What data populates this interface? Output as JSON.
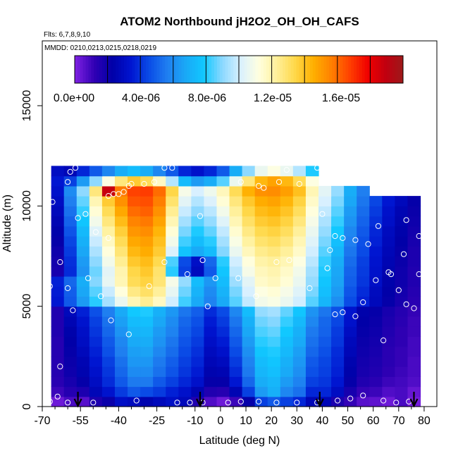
{
  "chart_data": {
    "type": "heatmap",
    "title": "ATOM2 Northbound jH2O2_OH_OH_CAFS",
    "flights_note": "Flts: 6,7,8,9,10",
    "dates_note": "MMDD: 0210,0213,0215,0218,0219",
    "xlabel": "Latitude (deg N)",
    "ylabel": "Altitude (m)",
    "xlim": [
      -70,
      85
    ],
    "ylim": [
      0,
      17500
    ],
    "x_ticks": [
      -70,
      -55,
      -40,
      -25,
      -10,
      0,
      10,
      20,
      30,
      40,
      50,
      60,
      70,
      80
    ],
    "x_tick_labels": [
      "-70",
      "-55",
      "-40",
      "-25",
      "-10",
      "0",
      "10",
      "20",
      "30",
      "40",
      "50",
      "60",
      "70",
      "80"
    ],
    "x_minor_ticks": [
      -65,
      -60,
      -50,
      -45,
      -35,
      -30,
      -20,
      -15,
      -5,
      5,
      15,
      25,
      35,
      45,
      55,
      65,
      75
    ],
    "y_ticks": [
      0,
      5000,
      10000,
      15000
    ],
    "y_tick_labels": [
      "0",
      "5000",
      "10000",
      "15000"
    ],
    "colorbar": {
      "min": 0,
      "max": 1.9e-05,
      "tick_values": [
        0,
        4e-06,
        8e-06,
        1.2e-05,
        1.6e-05
      ],
      "tick_labels": [
        "0.0e+00",
        "4.0e-06",
        "8.0e-06",
        "1.2e-05",
        "1.6e-05"
      ],
      "colors": [
        "#7b1fe0",
        "#3000b4",
        "#0000a8",
        "#0014d0",
        "#0a4ce6",
        "#1f7ef0",
        "#1aa8f6",
        "#10c8ff",
        "#8ad8ff",
        "#d8f0ff",
        "#ffffe0",
        "#fff09a",
        "#ffd84a",
        "#ffb000",
        "#ff8000",
        "#ff4000",
        "#f00000",
        "#c00010",
        "#9a1b1b"
      ]
    },
    "altitude_bins": [
      {
        "alt": 250,
        "values": [
          0.2,
          0.7,
          0.5,
          1.5,
          1.9,
          2.9,
          2.7,
          2.3,
          2.6,
          2.9,
          2.6,
          1.4,
          0.6,
          0.2,
          0.9,
          2.0,
          4.0,
          4.5,
          4.0,
          3.5,
          2.5,
          2.5,
          1.5,
          1.0,
          0.5,
          0.4,
          0.2,
          0.7,
          0.1
        ]
      },
      {
        "alt": 750,
        "values": [
          0.9,
          1.3,
          1.5,
          2.5,
          3.1,
          3.9,
          4.5,
          4.2,
          3.9,
          3.4,
          3.0,
          2.4,
          1.4,
          1.3,
          2.4,
          4.0,
          6.0,
          6.6,
          5.5,
          5.0,
          3.5,
          3.5,
          2.8,
          1.6,
          1.0,
          0.9,
          0.6,
          0.7,
          0.3
        ]
      },
      {
        "alt": 1250,
        "values": [
          1.2,
          1.6,
          2.0,
          2.8,
          3.6,
          4.5,
          5.2,
          5.2,
          4.5,
          4.0,
          3.5,
          3.0,
          2.0,
          2.0,
          3.2,
          4.8,
          6.5,
          6.8,
          6.0,
          5.4,
          4.0,
          3.8,
          3.2,
          2.0,
          1.4,
          1.2,
          0.9,
          0.8,
          0.6
        ]
      },
      {
        "alt": 1750,
        "values": [
          1.3,
          1.8,
          2.3,
          3.0,
          3.8,
          4.8,
          5.6,
          5.6,
          5.0,
          4.4,
          3.8,
          3.3,
          2.3,
          2.4,
          3.6,
          5.2,
          6.8,
          7.1,
          6.4,
          5.7,
          4.3,
          4.0,
          3.4,
          2.2,
          1.6,
          1.4,
          1.1,
          0.9,
          0.7
        ]
      },
      {
        "alt": 2250,
        "values": [
          1.3,
          1.9,
          2.4,
          3.2,
          4.0,
          5.0,
          5.9,
          5.9,
          5.2,
          4.6,
          4.0,
          3.5,
          2.5,
          2.7,
          3.9,
          5.4,
          7.0,
          7.3,
          6.6,
          5.9,
          4.5,
          4.1,
          3.5,
          2.3,
          1.7,
          1.5,
          1.2,
          1.0,
          0.7
        ]
      },
      {
        "alt": 2750,
        "values": [
          1.3,
          2.0,
          2.6,
          3.4,
          4.3,
          5.3,
          6.1,
          6.2,
          5.5,
          4.9,
          4.2,
          3.7,
          2.7,
          3.0,
          4.2,
          5.7,
          7.3,
          7.5,
          6.9,
          6.1,
          4.8,
          4.3,
          3.6,
          2.5,
          1.8,
          1.6,
          1.2,
          1.0,
          0.8
        ]
      },
      {
        "alt": 3250,
        "values": [
          1.3,
          2.1,
          2.8,
          3.6,
          4.5,
          5.5,
          6.4,
          6.5,
          5.8,
          5.1,
          4.4,
          3.9,
          2.9,
          3.3,
          4.5,
          6.0,
          7.6,
          7.8,
          7.1,
          6.4,
          5.0,
          4.5,
          3.8,
          2.6,
          1.9,
          1.7,
          1.3,
          1.1,
          0.8
        ]
      },
      {
        "alt": 3750,
        "values": [
          1.4,
          2.2,
          2.9,
          3.8,
          4.8,
          5.8,
          6.7,
          6.8,
          6.0,
          5.4,
          4.6,
          4.1,
          3.1,
          3.6,
          4.8,
          6.3,
          7.9,
          8.1,
          7.4,
          6.6,
          5.2,
          4.7,
          3.9,
          2.8,
          2.0,
          1.8,
          1.4,
          1.1,
          0.9
        ]
      },
      {
        "alt": 4250,
        "values": [
          1.4,
          2.4,
          3.1,
          4.0,
          5.0,
          6.1,
          7.0,
          7.1,
          6.3,
          5.6,
          4.8,
          4.3,
          3.3,
          3.9,
          5.1,
          6.6,
          8.2,
          8.4,
          7.7,
          6.9,
          5.5,
          4.8,
          4.1,
          3.0,
          2.1,
          1.9,
          1.5,
          1.2,
          0.9
        ]
      },
      {
        "alt": 4750,
        "values": [
          1.4,
          2.6,
          3.4,
          4.3,
          5.3,
          6.4,
          7.4,
          7.5,
          6.6,
          5.9,
          5.1,
          4.6,
          3.6,
          4.2,
          5.5,
          7.0,
          8.6,
          8.8,
          8.1,
          7.3,
          5.8,
          5.1,
          4.3,
          3.1,
          2.2,
          2.0,
          1.6,
          1.3,
          1.0
        ]
      },
      {
        "alt": 5250,
        "values": [
          3.2,
          4.5,
          6.0,
          7.6,
          8.8,
          10.0,
          11.2,
          11.7,
          11.0,
          9.4,
          7.8,
          6.4,
          5.4,
          6.4,
          8.0,
          9.2,
          10.2,
          10.4,
          10.0,
          9.4,
          8.0,
          6.8,
          5.7,
          4.2,
          3.4,
          2.6,
          2.0,
          1.6,
          1.2
        ]
      },
      {
        "alt": 5750,
        "values": [
          3.3,
          4.6,
          6.3,
          8.0,
          9.3,
          10.6,
          11.9,
          12.3,
          11.6,
          9.9,
          8.2,
          6.7,
          5.6,
          6.7,
          8.3,
          9.5,
          10.5,
          10.7,
          10.3,
          9.7,
          8.3,
          7.1,
          6.0,
          4.4,
          3.6,
          2.7,
          2.1,
          1.7,
          1.3
        ]
      },
      {
        "alt": 6250,
        "values": [
          3.4,
          4.8,
          6.5,
          8.4,
          9.9,
          11.2,
          12.5,
          12.8,
          12.1,
          10.3,
          8.6,
          7.0,
          5.9,
          7.0,
          8.7,
          9.8,
          10.9,
          11.1,
          10.7,
          10.0,
          8.6,
          7.3,
          6.2,
          4.6,
          3.8,
          2.9,
          2.2,
          1.8,
          1.4
        ]
      },
      {
        "alt": 6750,
        "values": [
          1.6,
          3.6,
          5.8,
          8.2,
          9.8,
          11.3,
          12.7,
          13.1,
          12.2,
          7.6,
          4.0,
          2.7,
          4.5,
          7.3,
          9.1,
          10.3,
          11.1,
          11.3,
          10.9,
          10.2,
          8.8,
          7.5,
          6.3,
          4.7,
          3.9,
          3.0,
          2.3,
          1.8,
          1.4
        ]
      },
      {
        "alt": 7250,
        "values": [
          1.7,
          3.7,
          6.0,
          8.5,
          10.2,
          11.7,
          13.1,
          13.4,
          12.6,
          7.9,
          4.2,
          2.9,
          4.8,
          7.6,
          9.4,
          10.6,
          11.4,
          11.6,
          11.2,
          10.5,
          9.1,
          7.7,
          6.5,
          4.9,
          4.0,
          3.1,
          2.4,
          1.9,
          1.5
        ]
      },
      {
        "alt": 7750,
        "values": [
          1.8,
          3.9,
          6.3,
          8.9,
          10.6,
          12.1,
          13.5,
          13.8,
          13.0,
          9.6,
          7.2,
          6.4,
          7.0,
          8.4,
          10.0,
          11.1,
          11.8,
          12.0,
          11.6,
          10.9,
          9.4,
          8.0,
          6.8,
          5.1,
          4.2,
          3.2,
          2.5,
          2.0,
          1.5
        ]
      },
      {
        "alt": 8250,
        "values": [
          2.0,
          4.1,
          6.6,
          9.3,
          11.0,
          12.5,
          13.9,
          14.1,
          13.3,
          10.2,
          7.8,
          7.0,
          7.6,
          8.8,
          10.4,
          11.5,
          12.2,
          12.4,
          12.0,
          11.2,
          9.7,
          8.3,
          7.1,
          5.3,
          4.3,
          3.4,
          2.6,
          2.1,
          1.6
        ]
      },
      {
        "alt": 8750,
        "values": [
          2.2,
          4.4,
          6.9,
          9.7,
          11.5,
          12.9,
          14.3,
          14.5,
          13.6,
          10.7,
          8.3,
          7.5,
          8.1,
          9.2,
          10.8,
          11.9,
          12.6,
          12.8,
          12.4,
          11.6,
          10.0,
          8.6,
          7.4,
          5.5,
          4.5,
          3.5,
          2.7,
          2.2,
          1.7
        ]
      },
      {
        "alt": 9250,
        "values": [
          2.4,
          4.7,
          7.3,
          10.2,
          12.0,
          13.4,
          14.7,
          14.9,
          14.0,
          11.2,
          8.8,
          8.0,
          8.6,
          9.7,
          11.2,
          12.3,
          13.0,
          13.2,
          12.8,
          12.0,
          10.3,
          8.9,
          7.7,
          5.8,
          4.7,
          3.7,
          2.9,
          2.3,
          1.8
        ]
      },
      {
        "alt": 9750,
        "values": [
          2.6,
          5.0,
          7.7,
          10.7,
          12.5,
          13.9,
          15.1,
          15.3,
          14.4,
          11.7,
          9.3,
          8.5,
          9.1,
          10.2,
          11.6,
          12.7,
          13.4,
          13.6,
          13.2,
          12.4,
          10.6,
          9.2,
          8.0,
          6.0,
          4.9,
          3.9,
          3.0,
          2.4,
          1.9
        ]
      },
      {
        "alt": 10250,
        "values": [
          2.8,
          5.3,
          8.1,
          11.2,
          13.0,
          14.4,
          15.5,
          15.6,
          14.8,
          12.2,
          9.8,
          9.0,
          9.6,
          10.7,
          12.0,
          13.1,
          13.8,
          14.0,
          13.6,
          12.8,
          10.9,
          9.5,
          8.3,
          6.3,
          5.1,
          4.1,
          3.2,
          2.6,
          2.0
        ]
      },
      {
        "alt": 10750,
        "values": [
          3.0,
          5.6,
          8.5,
          12.0,
          17.8,
          14.9,
          15.8,
          15.9,
          15.1,
          12.7,
          10.3,
          9.5,
          10.1,
          11.1,
          12.5,
          13.7,
          14.4,
          14.5,
          14.1,
          13.3,
          11.2,
          9.8,
          8.6,
          6.5,
          5.3
        ]
      },
      {
        "alt": 11250,
        "values": [
          3.2,
          4.0,
          6.0,
          8.5,
          10.5,
          12.0,
          13.0,
          12.5,
          11.0,
          9.0,
          7.0,
          6.0,
          6.5,
          8.0,
          10.0,
          12.0,
          13.5,
          14.0,
          13.5,
          12.5,
          10.5
        ]
      },
      {
        "alt": 11750,
        "values": [
          2.8,
          2.5,
          3.5,
          4.5,
          5.5,
          6.5,
          7.0,
          6.5,
          5.5,
          4.5,
          3.5,
          3.0,
          3.5,
          4.5,
          6.5,
          8.5,
          10.0,
          10.5,
          10.0,
          9.0,
          7.5
        ]
      }
    ],
    "lat_bin_start": -70,
    "lat_bin_width": 5,
    "observation_points": [
      [
        -69,
        200
      ],
      [
        -67,
        250
      ],
      [
        -64,
        500
      ],
      [
        -60,
        200
      ],
      [
        -50,
        200
      ],
      [
        -33,
        300
      ],
      [
        -17,
        200
      ],
      [
        -12,
        200
      ],
      [
        -7,
        200
      ],
      [
        3,
        200
      ],
      [
        8,
        250
      ],
      [
        15,
        250
      ],
      [
        22,
        200
      ],
      [
        30,
        200
      ],
      [
        38,
        200
      ],
      [
        46,
        300
      ],
      [
        51,
        400
      ],
      [
        56,
        550
      ],
      [
        64,
        300
      ],
      [
        69,
        200
      ],
      [
        74,
        250
      ],
      [
        -68,
        1200
      ],
      [
        -63,
        2000
      ],
      [
        -58,
        4800
      ],
      [
        -52,
        6400
      ],
      [
        -47,
        5500
      ],
      [
        -43,
        4300
      ],
      [
        -36,
        3600
      ],
      [
        -28,
        6000
      ],
      [
        -22,
        7200
      ],
      [
        -13,
        6600
      ],
      [
        -7,
        7300
      ],
      [
        -5,
        5000
      ],
      [
        -2,
        6400
      ],
      [
        7,
        6400
      ],
      [
        14,
        5500
      ],
      [
        22,
        7200
      ],
      [
        27,
        7300
      ],
      [
        35,
        5900
      ],
      [
        42,
        6900
      ],
      [
        45,
        4600
      ],
      [
        48,
        4700
      ],
      [
        53,
        4500
      ],
      [
        56,
        5200
      ],
      [
        61,
        6300
      ],
      [
        64,
        3300
      ],
      [
        66,
        6700
      ],
      [
        67,
        6600
      ],
      [
        70,
        5800
      ],
      [
        73,
        5100
      ],
      [
        76,
        4900
      ],
      [
        80,
        4000
      ],
      [
        -69,
        6300
      ],
      [
        -67,
        6000
      ],
      [
        -63,
        7200
      ],
      [
        -60,
        5900
      ],
      [
        -66,
        10200
      ],
      [
        -60,
        11200
      ],
      [
        -56,
        9400
      ],
      [
        -53,
        9600
      ],
      [
        -44,
        10500
      ],
      [
        -42,
        10600
      ],
      [
        -40,
        10600
      ],
      [
        -38,
        10700
      ],
      [
        -36,
        11000
      ],
      [
        -35,
        11100
      ],
      [
        -30,
        11100
      ],
      [
        -26,
        11200
      ],
      [
        -8,
        9500
      ],
      [
        8,
        11200
      ],
      [
        15,
        11000
      ],
      [
        17,
        10900
      ],
      [
        23,
        11200
      ],
      [
        31,
        11100
      ],
      [
        40,
        9600
      ],
      [
        43,
        7800
      ],
      [
        45,
        8500
      ],
      [
        48,
        8400
      ],
      [
        53,
        8300
      ],
      [
        58,
        8100
      ],
      [
        62,
        9000
      ],
      [
        73,
        9300
      ],
      [
        78,
        8500
      ],
      [
        -69,
        10000
      ],
      [
        -59,
        11700
      ],
      [
        -57,
        11900
      ],
      [
        -22,
        11900
      ],
      [
        -19,
        11900
      ],
      [
        26,
        11800
      ],
      [
        38,
        11900
      ],
      [
        -49,
        8700
      ],
      [
        -44,
        8400
      ],
      [
        72,
        7600
      ],
      [
        78,
        6600
      ]
    ],
    "flight_arrows_lat": [
      -56,
      -8,
      39,
      76
    ]
  }
}
